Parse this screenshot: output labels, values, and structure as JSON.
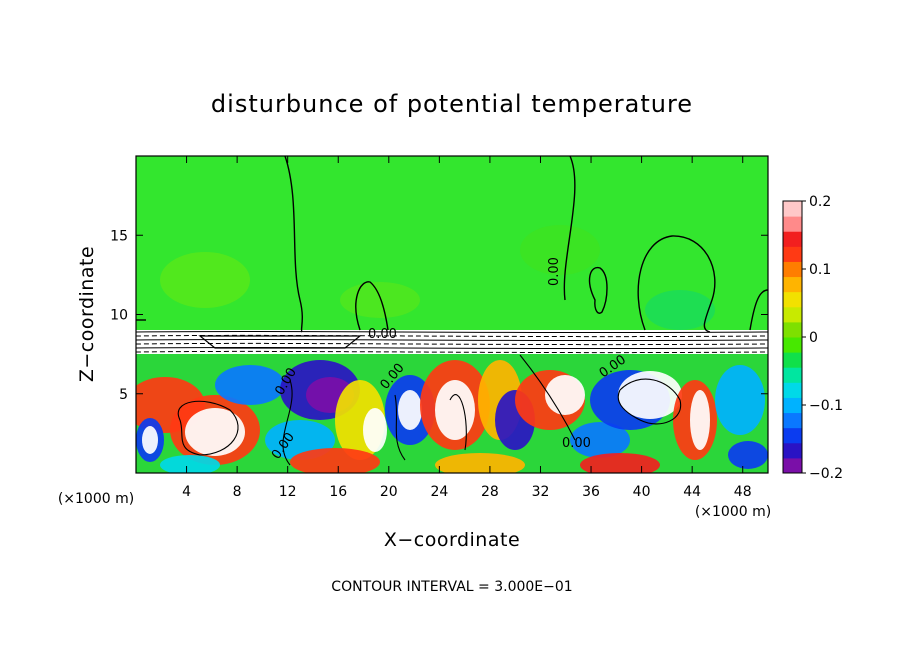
{
  "chart_data": {
    "type": "heatmap",
    "title": "disturbunce of potential temperature",
    "xlabel": "X−coordinate",
    "ylabel": "Z−coordinate",
    "x_unit_left": "(×1000 m)",
    "x_unit_right": "(×1000 m)",
    "xlim": [
      0,
      50
    ],
    "ylim": [
      0,
      20
    ],
    "xticks": [
      4,
      8,
      12,
      16,
      20,
      24,
      28,
      32,
      36,
      40,
      44,
      48
    ],
    "yticks": [
      5,
      10,
      15
    ],
    "colorbar": {
      "range": [
        -0.2,
        0.2
      ],
      "tick_values": [
        0.2,
        0.1,
        0,
        -0.1,
        -0.2
      ],
      "tick_labels": [
        "0.2",
        "0.1",
        "0",
        "−0.1",
        "−0.2"
      ],
      "colors": [
        "#7a0fa8",
        "#2a13c4",
        "#0b3cf0",
        "#0a78ff",
        "#00b2ff",
        "#00d9e8",
        "#00e6a0",
        "#10e04a",
        "#47e800",
        "#7ee000",
        "#c8ea00",
        "#f2e100",
        "#ffb400",
        "#ff7d00",
        "#ff3a14",
        "#f21f1f",
        "#ff8a8a",
        "#ffc8c8"
      ]
    },
    "contour_labels": [
      "0.00",
      "0.00",
      "0.00",
      "0.00",
      "0.00",
      "0.00",
      "0.00",
      "0.00"
    ],
    "background_value": 0,
    "footer": "CONTOUR INTERVAL = 3.000E−01"
  }
}
